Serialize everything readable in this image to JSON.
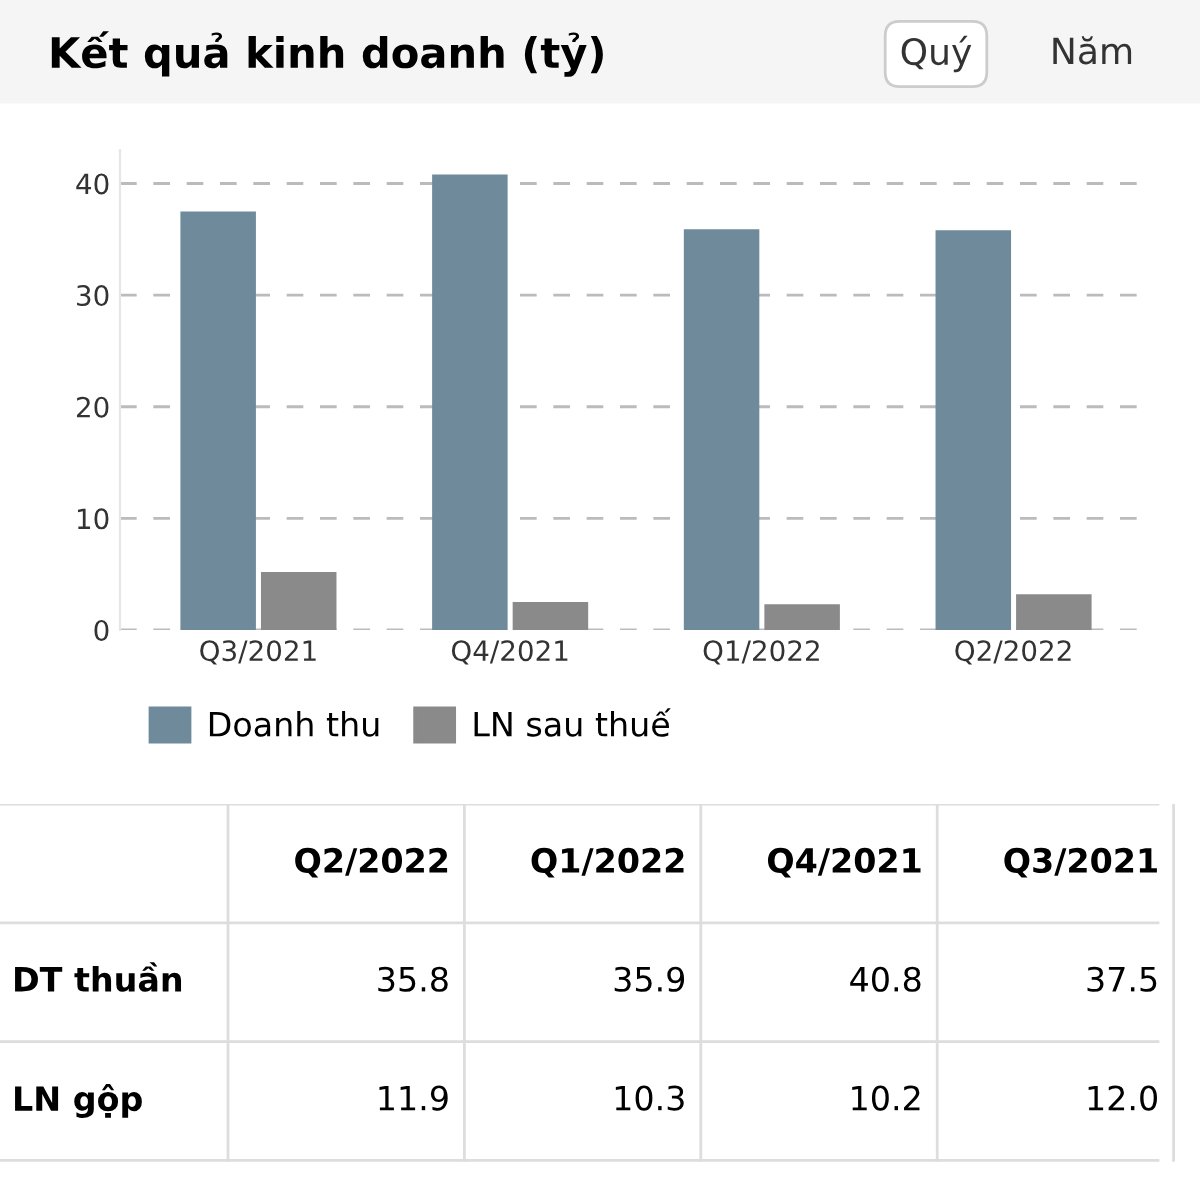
{
  "chart_data": [
    {
      "type": "bar",
      "title": "Kết quả kinh doanh (tỷ)",
      "annotations": [
        "Quý",
        "Năm"
      ],
      "categories": [
        "Q3/2021",
        "Q4/2021",
        "Q1/2022",
        "Q2/2022"
      ],
      "series": [
        {
          "name": "Doanh thu",
          "color": "#6f8b9b",
          "values": [
            37.5,
            40.8,
            35.9,
            35.8
          ]
        },
        {
          "name": "LN sau thuế",
          "color": "#8a8a8a",
          "values": [
            5.2,
            2.5,
            2.3,
            3.2
          ]
        }
      ],
      "ylim": [
        0,
        43
      ],
      "yticks": [
        0,
        10,
        20,
        30,
        40
      ],
      "grid": "y",
      "legend": "bottom"
    },
    {
      "type": "other",
      "categories": [
        "Q2/2022",
        "Q1/2022",
        "Q4/2021",
        "Q3/2021"
      ],
      "series": [
        {
          "name": "DT thuần",
          "values": [
            35.8,
            35.9,
            40.8,
            37.5
          ],
          "value_labels": [
            "35.8",
            "35.9",
            "40.8",
            "37.5"
          ]
        },
        {
          "name": "LN gộp",
          "values": [
            11.9,
            10.3,
            10.2,
            12.0
          ],
          "value_labels": [
            "11.9",
            "10.3",
            "10.2",
            "12.0"
          ]
        }
      ]
    }
  ]
}
